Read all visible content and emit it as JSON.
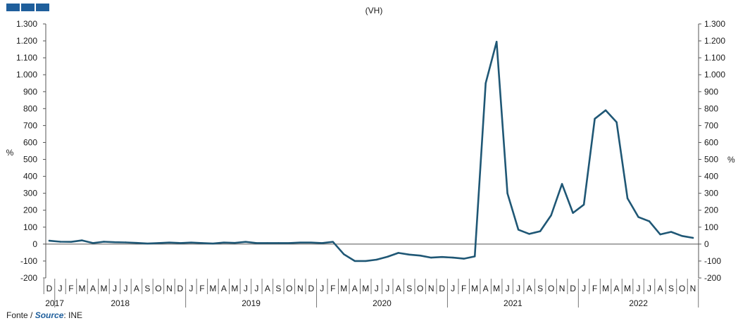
{
  "logo": {
    "color": "#1f5f9c",
    "blocks": 3
  },
  "source": {
    "prefix": "Fonte / ",
    "source_word": "Source",
    "suffix": ": INE"
  },
  "chart_data": {
    "type": "line",
    "title": "(VH)",
    "ylabel_left": "%",
    "ylabel_right": "%",
    "ylim": [
      -200,
      1300
    ],
    "yticks": [
      -200,
      -100,
      0,
      100,
      200,
      300,
      400,
      500,
      600,
      700,
      800,
      900,
      1000,
      1100,
      1200,
      1300
    ],
    "ytick_labels": [
      "-200",
      "-100",
      "0",
      "100",
      "200",
      "300",
      "400",
      "500",
      "600",
      "700",
      "800",
      "900",
      "1.000",
      "1.100",
      "1.200",
      "1.300"
    ],
    "line_color": "#1f5775",
    "month_labels": [
      "D",
      "J",
      "F",
      "M",
      "A",
      "M",
      "J",
      "J",
      "A",
      "S",
      "O",
      "N",
      "D",
      "J",
      "F",
      "M",
      "A",
      "M",
      "J",
      "J",
      "A",
      "S",
      "O",
      "N",
      "D",
      "J",
      "F",
      "M",
      "A",
      "M",
      "J",
      "J",
      "A",
      "S",
      "O",
      "N",
      "D",
      "J",
      "F",
      "M",
      "A",
      "M",
      "J",
      "J",
      "A",
      "S",
      "O",
      "N",
      "D",
      "J",
      "F",
      "M",
      "A",
      "M",
      "J",
      "J",
      "A",
      "S",
      "O",
      "N"
    ],
    "years": [
      {
        "label": "2017",
        "start": 0,
        "count": 1
      },
      {
        "label": "2018",
        "start": 1,
        "count": 12
      },
      {
        "label": "2019",
        "start": 13,
        "count": 12
      },
      {
        "label": "2020",
        "start": 25,
        "count": 12
      },
      {
        "label": "2021",
        "start": 37,
        "count": 12
      },
      {
        "label": "2022",
        "start": 49,
        "count": 11
      }
    ],
    "x": [
      "2017-12",
      "2018-01",
      "2018-02",
      "2018-03",
      "2018-04",
      "2018-05",
      "2018-06",
      "2018-07",
      "2018-08",
      "2018-09",
      "2018-10",
      "2018-11",
      "2018-12",
      "2019-01",
      "2019-02",
      "2019-03",
      "2019-04",
      "2019-05",
      "2019-06",
      "2019-07",
      "2019-08",
      "2019-09",
      "2019-10",
      "2019-11",
      "2019-12",
      "2020-01",
      "2020-02",
      "2020-03",
      "2020-04",
      "2020-05",
      "2020-06",
      "2020-07",
      "2020-08",
      "2020-09",
      "2020-10",
      "2020-11",
      "2020-12",
      "2021-01",
      "2021-02",
      "2021-03",
      "2021-04",
      "2021-05",
      "2021-06",
      "2021-07",
      "2021-08",
      "2021-09",
      "2021-10",
      "2021-11",
      "2021-12",
      "2022-01",
      "2022-02",
      "2022-03",
      "2022-04",
      "2022-05",
      "2022-06",
      "2022-07",
      "2022-08",
      "2022-09",
      "2022-10",
      "2022-11"
    ],
    "values": [
      20,
      14,
      13,
      22,
      6,
      14,
      11,
      10,
      7,
      3,
      6,
      9,
      6,
      9,
      6,
      3,
      9,
      7,
      13,
      6,
      6,
      6,
      6,
      9,
      9,
      6,
      13,
      -60,
      -100,
      -100,
      -92,
      -75,
      -52,
      -62,
      -68,
      -80,
      -76,
      -80,
      -86,
      -73,
      950,
      1195,
      300,
      85,
      60,
      76,
      170,
      355,
      184,
      233,
      740,
      790,
      720,
      270,
      160,
      135,
      57,
      72,
      48,
      37
    ]
  }
}
